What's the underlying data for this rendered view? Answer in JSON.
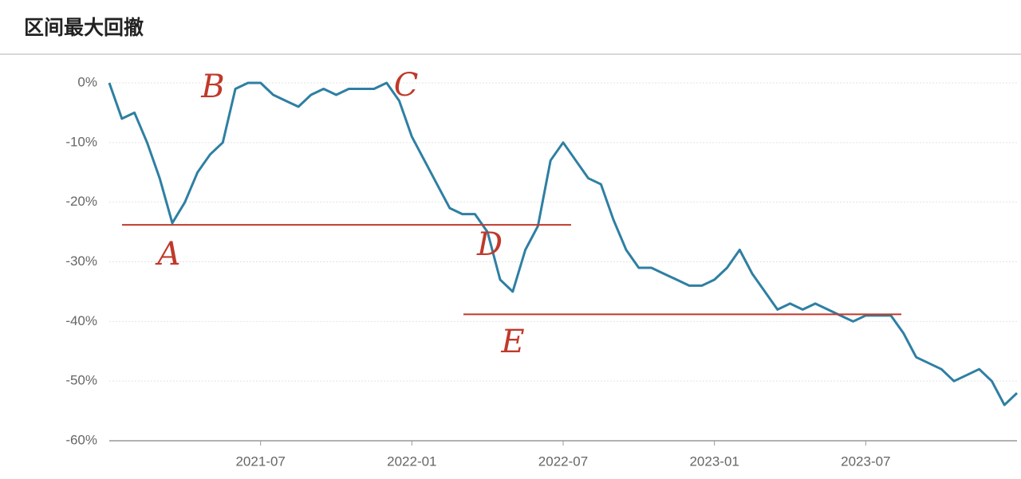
{
  "chart_data": {
    "type": "line",
    "title": "区间最大回撤",
    "categories": [
      null,
      null,
      null,
      null,
      null,
      null,
      null,
      null,
      null,
      null,
      null,
      null,
      "2021-07",
      null,
      null,
      null,
      null,
      null,
      null,
      null,
      null,
      null,
      null,
      null,
      "2022-01",
      null,
      null,
      null,
      null,
      null,
      null,
      null,
      null,
      null,
      null,
      null,
      "2022-07",
      null,
      null,
      null,
      null,
      null,
      null,
      null,
      null,
      null,
      null,
      null,
      "2023-01",
      null,
      null,
      null,
      null,
      null,
      null,
      null,
      null,
      null,
      null,
      null,
      "2023-07",
      null,
      null,
      null,
      null,
      null,
      null,
      null,
      null,
      null,
      null,
      null,
      null
    ],
    "values": [
      0,
      -6,
      -5,
      -10,
      -16,
      -23.5,
      -20,
      -15,
      -12,
      -10,
      -1,
      0,
      0,
      -2,
      -3,
      -4,
      -2,
      -1,
      -2,
      -1,
      -1,
      -1,
      0,
      -3,
      -9,
      -13,
      -17,
      -21,
      -22,
      -22,
      -25,
      -33,
      -35,
      -28,
      -24,
      -13,
      -10,
      -13,
      -16,
      -17,
      -23,
      -28,
      -31,
      -31,
      -32,
      -33,
      -34,
      -34,
      -33,
      -31,
      -28,
      -32,
      -35,
      -38,
      -37,
      -38,
      -37,
      -38,
      -39,
      -40,
      -39,
      -39,
      -39,
      -42,
      -46,
      -47,
      -48,
      -50,
      -49,
      -48,
      -50,
      -54,
      -52
    ],
    "color": "#2e7fa3",
    "ylim": [
      -60,
      0
    ],
    "yticks": [
      {
        "value": -60,
        "label": "-60%"
      },
      {
        "value": -50,
        "label": "-50%"
      },
      {
        "value": -40,
        "label": "-40%"
      },
      {
        "value": -30,
        "label": "-30%"
      },
      {
        "value": -20,
        "label": "-20%"
      },
      {
        "value": -10,
        "label": "-10%"
      },
      {
        "value": 0,
        "label": "0%"
      }
    ],
    "grid": true,
    "reference_lines": [
      {
        "value": -23.8,
        "color": "#c0392b"
      },
      {
        "value": -38.8,
        "color": "#c0392b"
      }
    ],
    "annotations": [
      "A",
      "B",
      "C",
      "D",
      "E"
    ]
  }
}
